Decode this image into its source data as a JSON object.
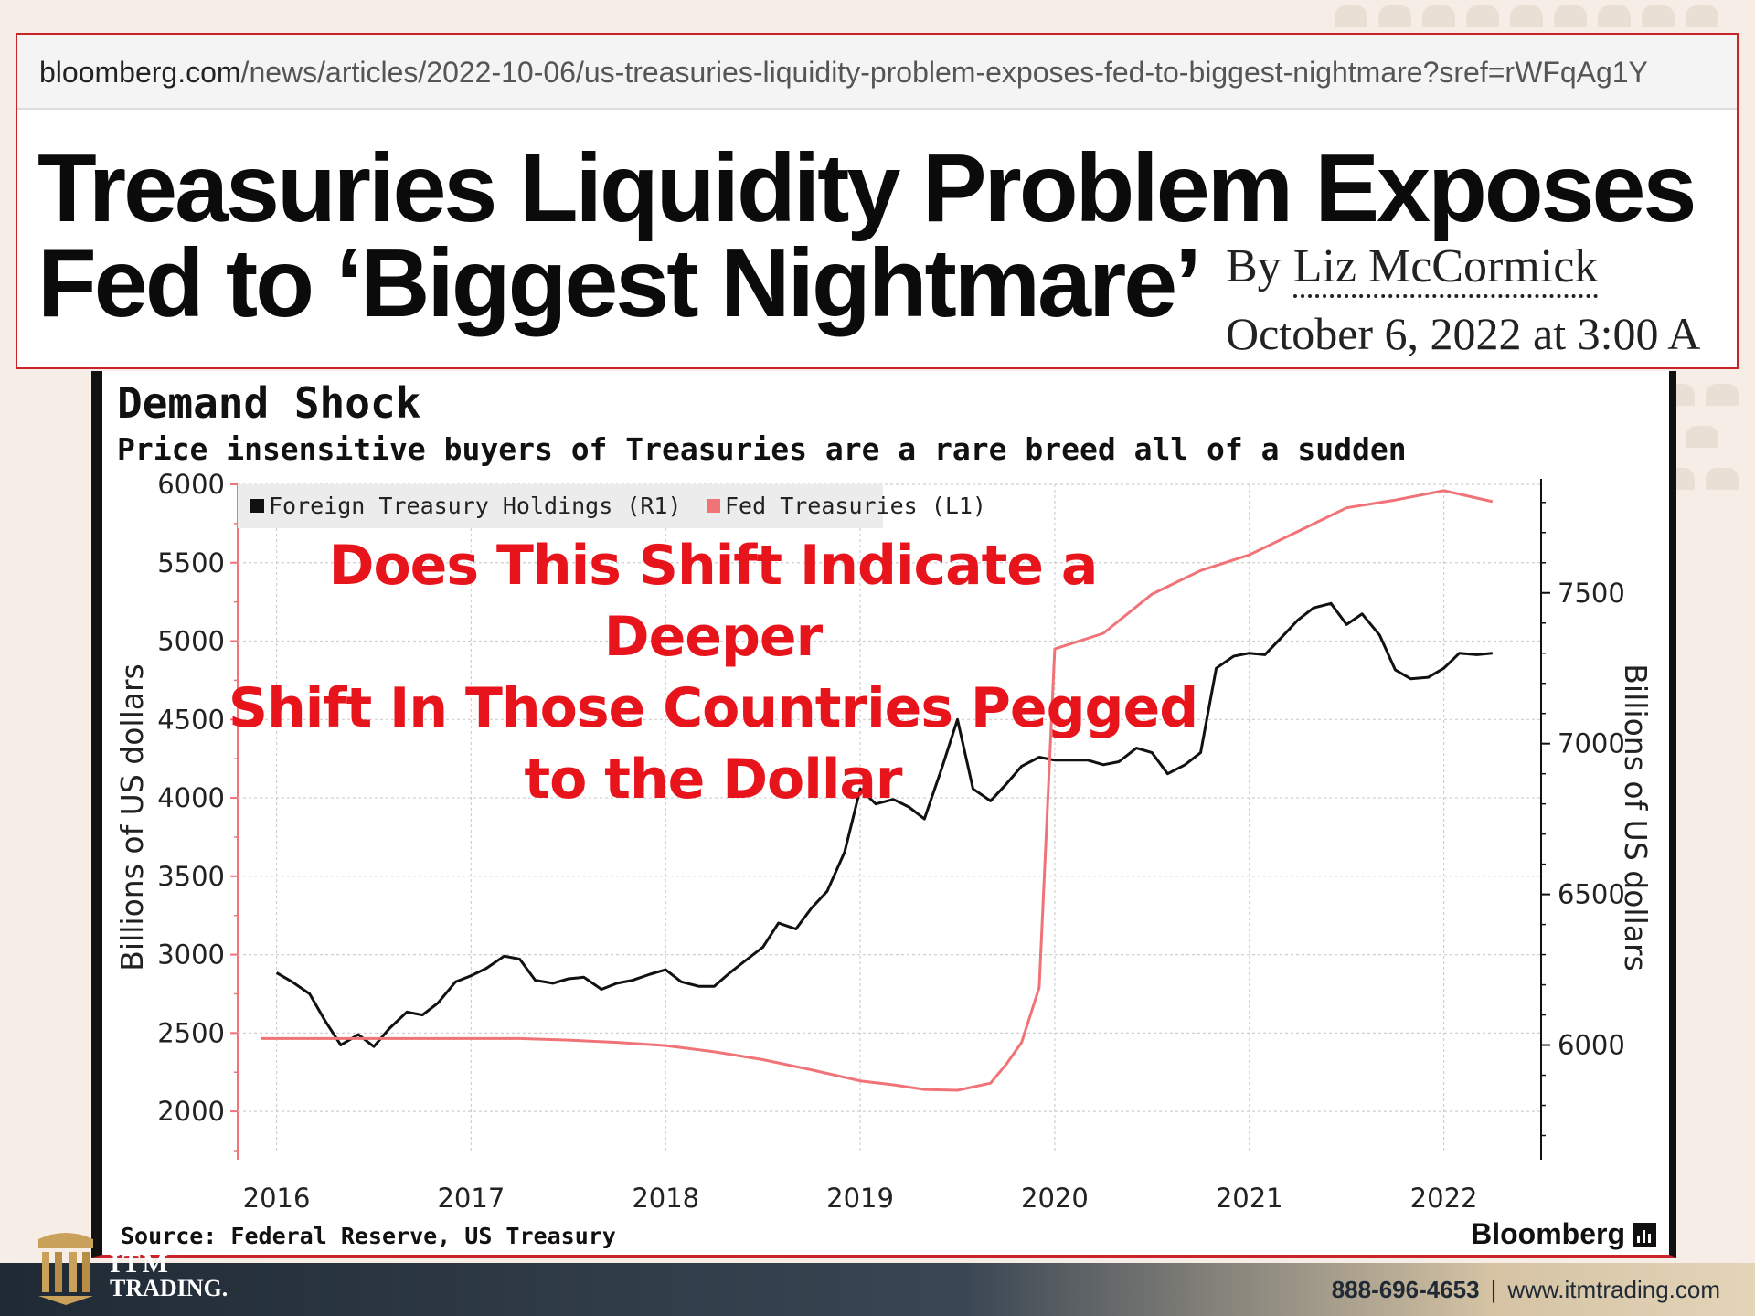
{
  "article": {
    "url_domain": "bloomberg.com",
    "url_path": "/news/articles/2022-10-06/us-treasuries-liquidity-problem-exposes-fed-to-biggest-nightmare?sref=rWFqAg1Y",
    "headline_line1": "Treasuries Liquidity Problem Exposes",
    "headline_line2": "Fed to ‘Biggest Nightmare’",
    "byline_prefix": "By",
    "author": "Liz McCormick",
    "date": "October 6, 2022 at 3:00 A"
  },
  "overlay": {
    "line1": "Does This Shift Indicate a Deeper",
    "line2": "Shift In Those Countries Pegged",
    "line3": "to the Dollar"
  },
  "chart_data": {
    "type": "line",
    "title": "Demand Shock",
    "subtitle": "Price insensitive buyers of Treasuries are a rare breed all of a sudden",
    "source": "Source: Federal Reserve, US Treasury",
    "brand": "Bloomberg",
    "ylabel_left": "Billions of US dollars",
    "ylabel_right": "Billions of US dollars",
    "y_left_ticks": [
      "6000",
      "5500",
      "5000",
      "4500",
      "4000",
      "3500",
      "3000",
      "2500",
      "2000"
    ],
    "y_left_range": [
      1750,
      6000
    ],
    "y_right_ticks": [
      "7500",
      "7000",
      "6500",
      "6000"
    ],
    "y_right_range": [
      5650,
      7860
    ],
    "x_ticks": [
      "2016",
      "2017",
      "2018",
      "2019",
      "2020",
      "2021",
      "2022"
    ],
    "x_range": [
      2015.8,
      2022.5
    ],
    "legend_placement": "top-left",
    "grid": true,
    "colors": {
      "foreign": "#111111",
      "fed": "#f07378",
      "accent": "#e8141c"
    },
    "series": [
      {
        "name": "Foreign Treasury Holdings (R1)",
        "axis": "right",
        "color": "#111111",
        "x": [
          2016.0,
          2016.08,
          2016.17,
          2016.25,
          2016.33,
          2016.42,
          2016.5,
          2016.58,
          2016.67,
          2016.75,
          2016.83,
          2016.92,
          2017.0,
          2017.08,
          2017.17,
          2017.25,
          2017.33,
          2017.42,
          2017.5,
          2017.58,
          2017.67,
          2017.75,
          2017.83,
          2017.92,
          2018.0,
          2018.08,
          2018.17,
          2018.25,
          2018.33,
          2018.42,
          2018.5,
          2018.58,
          2018.67,
          2018.75,
          2018.83,
          2018.92,
          2019.0,
          2019.08,
          2019.17,
          2019.25,
          2019.33,
          2019.42,
          2019.5,
          2019.58,
          2019.67,
          2019.75,
          2019.83,
          2019.92,
          2020.0,
          2020.08,
          2020.17,
          2020.25,
          2020.33,
          2020.42,
          2020.5,
          2020.58,
          2020.67,
          2020.75,
          2020.83,
          2020.92,
          2021.0,
          2021.08,
          2021.17,
          2021.25,
          2021.33,
          2021.42,
          2021.5,
          2021.58,
          2021.67,
          2021.75,
          2021.83,
          2021.92,
          2022.0,
          2022.08,
          2022.17,
          2022.25
        ],
        "y": [
          6240,
          6210,
          6170,
          6080,
          6000,
          6035,
          5995,
          6055,
          6110,
          6100,
          6140,
          6210,
          6230,
          6255,
          6295,
          6285,
          6215,
          6205,
          6220,
          6225,
          6185,
          6205,
          6215,
          6235,
          6250,
          6210,
          6195,
          6195,
          6240,
          6285,
          6325,
          6405,
          6385,
          6455,
          6510,
          6640,
          6850,
          6800,
          6815,
          6790,
          6750,
          6920,
          7080,
          6850,
          6810,
          6865,
          6925,
          6955,
          6945,
          6945,
          6945,
          6930,
          6940,
          6985,
          6970,
          6900,
          6930,
          6970,
          7250,
          7290,
          7300,
          7295,
          7355,
          7410,
          7450,
          7465,
          7395,
          7430,
          7360,
          7245,
          7215,
          7220,
          7250,
          7300,
          7295,
          7300
        ]
      },
      {
        "name": "Fed Treasuries (L1)",
        "axis": "left",
        "color": "#f07378",
        "x": [
          2015.92,
          2016.5,
          2017.0,
          2017.25,
          2017.5,
          2017.75,
          2018.0,
          2018.25,
          2018.5,
          2018.75,
          2019.0,
          2019.17,
          2019.33,
          2019.5,
          2019.67,
          2019.75,
          2019.83,
          2019.92,
          2020.0,
          2020.25,
          2020.5,
          2020.75,
          2021.0,
          2021.25,
          2021.5,
          2021.75,
          2022.0,
          2022.25
        ],
        "y": [
          2465,
          2465,
          2465,
          2465,
          2455,
          2440,
          2420,
          2380,
          2330,
          2265,
          2195,
          2170,
          2140,
          2135,
          2180,
          2300,
          2440,
          2790,
          4950,
          5050,
          5300,
          5450,
          5550,
          5700,
          5850,
          5900,
          5960,
          5890
        ]
      }
    ]
  },
  "footer": {
    "logo_line1": "ITM",
    "logo_line2": "TRADING.",
    "phone": "888-696-4653",
    "separator": "|",
    "website": "www.itmtrading.com"
  }
}
